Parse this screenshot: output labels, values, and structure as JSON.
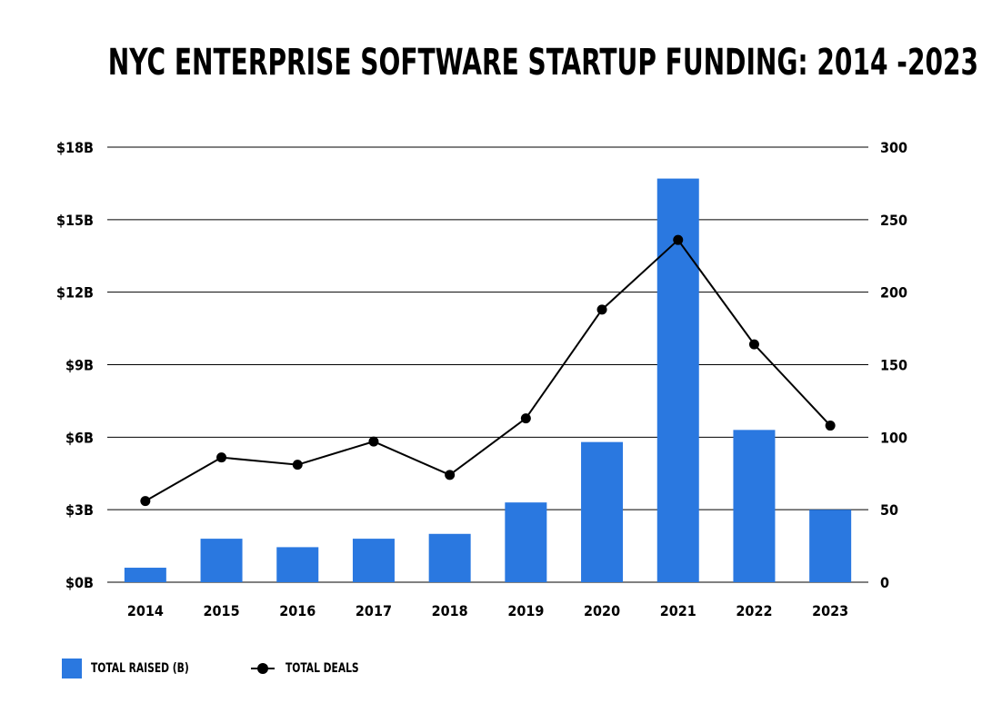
{
  "chart_data": {
    "type": "bar+line",
    "title": "NYC ENTERPRISE SOFTWARE STARTUP FUNDING: 2014 -2023",
    "categories": [
      "2014",
      "2015",
      "2016",
      "2017",
      "2018",
      "2019",
      "2020",
      "2021",
      "2022",
      "2023"
    ],
    "series": [
      {
        "name": "TOTAL RAISED (B)",
        "type": "bar",
        "axis": "left",
        "values": [
          0.6,
          1.8,
          1.45,
          1.8,
          2.0,
          3.3,
          5.8,
          16.7,
          6.3,
          3.0
        ],
        "color": "#2a78e0"
      },
      {
        "name": "TOTAL DEALS",
        "type": "line",
        "axis": "right",
        "values": [
          56,
          86,
          81,
          97,
          74,
          113,
          188,
          236,
          164,
          108
        ],
        "color": "#000000"
      }
    ],
    "y_left": {
      "ticks": [
        "$0B",
        "$3B",
        "$6B",
        "$9B",
        "$12B",
        "$15B",
        "$18B"
      ],
      "range": [
        0,
        18
      ]
    },
    "y_right": {
      "ticks": [
        "0",
        "50",
        "100",
        "150",
        "200",
        "250",
        "300"
      ],
      "range": [
        0,
        300
      ]
    },
    "grid": true,
    "legend_position": "bottom-left"
  }
}
